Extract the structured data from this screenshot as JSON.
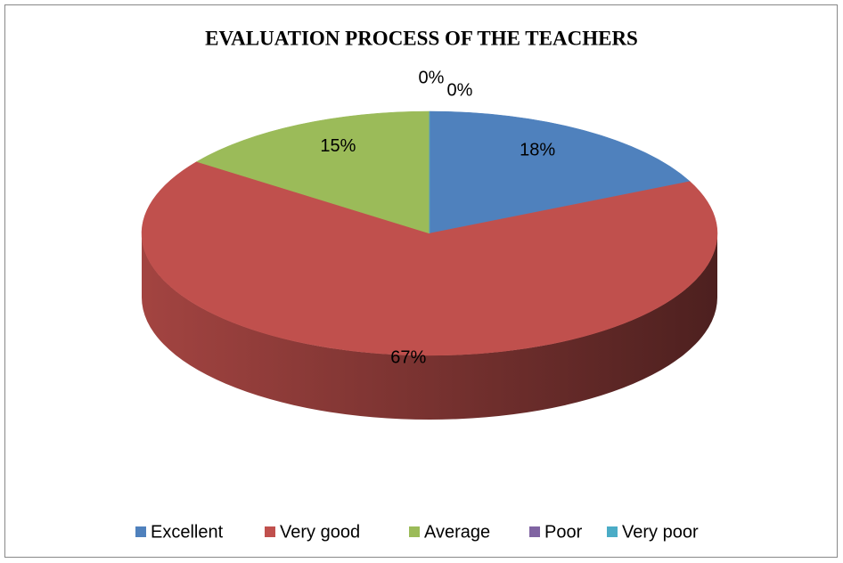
{
  "chart_data": {
    "type": "pie",
    "title": "EVALUATION PROCESS OF THE TEACHERS",
    "categories": [
      "Excellent",
      "Very good",
      "Average",
      "Poor",
      "Very poor"
    ],
    "values": [
      18,
      67,
      15,
      0,
      0
    ],
    "value_labels": [
      "18%",
      "67%",
      "15%",
      "0%",
      "0%"
    ],
    "colors": [
      "#4f81bd",
      "#c0504d",
      "#9bbb59",
      "#8064a2",
      "#4bacc6"
    ],
    "legend": "bottom"
  }
}
